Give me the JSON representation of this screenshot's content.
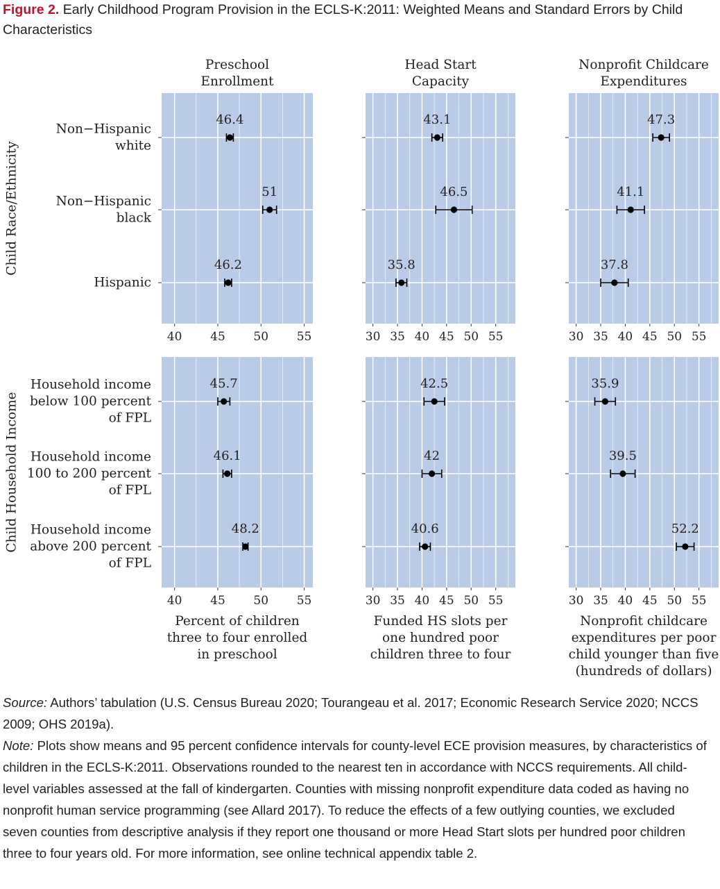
{
  "figure": {
    "label": "Figure 2.",
    "title": "Early Childhood Program Provision in the ECLS-K:2011: Weighted Means and Standard Errors by Child Characteristics"
  },
  "chart_data": {
    "type": "scatter",
    "columns": [
      {
        "title": [
          "Preschool",
          "Enrollment"
        ],
        "xlim": [
          38.5,
          56
        ],
        "ticks": [
          40,
          45,
          50,
          55
        ],
        "xlabel": [
          "Percent of children",
          "three to four enrolled",
          "in preschool"
        ]
      },
      {
        "title": [
          "Head Start",
          "Capacity"
        ],
        "xlim": [
          28.5,
          59
        ],
        "ticks": [
          30,
          35,
          40,
          45,
          50,
          55
        ],
        "xlabel": [
          "Funded HS slots per",
          "one hundred poor",
          "children three to four"
        ]
      },
      {
        "title": [
          "Nonprofit Childcare",
          "Expenditures"
        ],
        "xlim": [
          28.5,
          59
        ],
        "ticks": [
          30,
          35,
          40,
          45,
          50,
          55
        ],
        "xlabel": [
          "Nonprofit childcare",
          "expenditures per poor",
          "child younger than five",
          "(hundreds of dollars)"
        ]
      }
    ],
    "panels": [
      {
        "group_label": "Child Race/Ethnicity",
        "categories": [
          [
            "Non−Hispanic",
            "white"
          ],
          [
            "Non−Hispanic",
            "black"
          ],
          [
            "Hispanic"
          ]
        ],
        "points": [
          [
            {
              "label": "46.4",
              "mean": 46.4,
              "low": 46.0,
              "high": 46.8
            },
            {
              "label": "51",
              "mean": 51.0,
              "low": 50.2,
              "high": 51.8
            },
            {
              "label": "46.2",
              "mean": 46.2,
              "low": 45.8,
              "high": 46.6
            }
          ],
          [
            {
              "label": "43.1",
              "mean": 43.1,
              "low": 42.0,
              "high": 44.2
            },
            {
              "label": "46.5",
              "mean": 46.5,
              "low": 42.8,
              "high": 50.2
            },
            {
              "label": "35.8",
              "mean": 35.8,
              "low": 34.7,
              "high": 36.9
            }
          ],
          [
            {
              "label": "47.3",
              "mean": 47.3,
              "low": 45.6,
              "high": 49.0
            },
            {
              "label": "41.1",
              "mean": 41.1,
              "low": 38.3,
              "high": 43.9
            },
            {
              "label": "37.8",
              "mean": 37.8,
              "low": 35.0,
              "high": 40.6
            }
          ]
        ]
      },
      {
        "group_label": "Child Household Income",
        "categories": [
          [
            "Household income",
            "below 100 percent",
            "of FPL"
          ],
          [
            "Household income",
            "100 to 200 percent",
            "of FPL"
          ],
          [
            "Household income",
            "above 200 percent",
            "of FPL"
          ]
        ],
        "points": [
          [
            {
              "label": "45.7",
              "mean": 45.7,
              "low": 45.0,
              "high": 46.4
            },
            {
              "label": "46.1",
              "mean": 46.1,
              "low": 45.6,
              "high": 46.6
            },
            {
              "label": "48.2",
              "mean": 48.2,
              "low": 47.9,
              "high": 48.5
            }
          ],
          [
            {
              "label": "42.5",
              "mean": 42.5,
              "low": 40.4,
              "high": 44.6
            },
            {
              "label": "42",
              "mean": 42.0,
              "low": 40.0,
              "high": 44.0
            },
            {
              "label": "40.6",
              "mean": 40.6,
              "low": 39.5,
              "high": 41.7
            }
          ],
          [
            {
              "label": "35.9",
              "mean": 35.9,
              "low": 33.8,
              "high": 38.0
            },
            {
              "label": "39.5",
              "mean": 39.5,
              "low": 37.0,
              "high": 42.0
            },
            {
              "label": "52.2",
              "mean": 52.2,
              "low": 50.4,
              "high": 54.0
            }
          ]
        ]
      }
    ],
    "grid": true,
    "legend": "none",
    "colors": {
      "panel_bg": "#b9cbe6",
      "grid": "#ffffff",
      "point": "#000000"
    }
  },
  "notes": {
    "source_label": "Source:",
    "source_text": " Authors’ tabulation (U.S. Census Bureau 2020; Tourangeau et al. 2017; Economic Research Service 2020; NCCS 2009; OHS 2019a).",
    "note_label": "Note:",
    "note_text": " Plots show means and 95 percent confidence intervals for county-level ECE provision measures, by characteristics of children in the ECLS-K:2011. Observations rounded to the nearest ten in accordance with NCCS requirements. All child-level variables assessed at the fall of kindergarten. Counties with missing nonprofit expenditure data coded as having no nonprofit human service programming (see Allard 2017). To reduce the effects of a few outlying counties, we excluded seven counties from descriptive analysis if they report one thousand or more Head Start slots per hundred poor children three to four years old. For more information, see online technical appendix table 2."
  }
}
